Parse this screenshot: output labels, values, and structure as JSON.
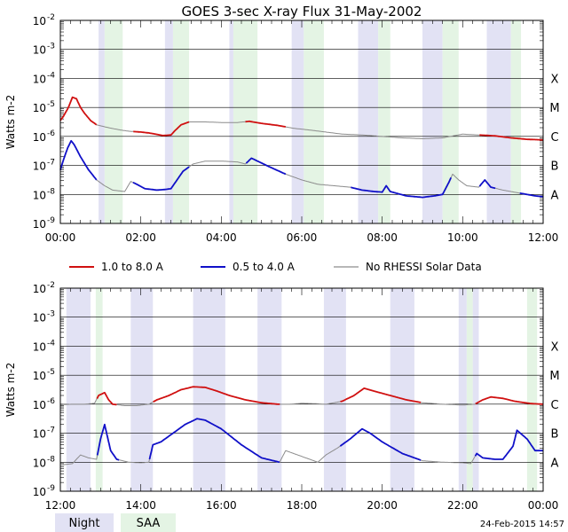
{
  "title": "GOES 3-sec X-ray Flux    31-May-2002",
  "colors": {
    "long": "#d01010",
    "short": "#1010c8",
    "gray": "#8c8c8c",
    "night": "#e2e2f4",
    "saa": "#e4f4e4",
    "grid": "#000000"
  },
  "legend": {
    "long_label": "1.0 to 8.0 A",
    "short_label": "0.5 to 4.0 A",
    "gray_label": "No RHESSI Solar Data"
  },
  "key": {
    "night_label": "Night",
    "saa_label": "SAA"
  },
  "timestamp": "24-Feb-2015 14:57",
  "chart_data": [
    {
      "type": "line",
      "panel": "top",
      "ylabel": "Watts m-2",
      "y_scale": "log",
      "ylim_exp": [
        -9,
        -2
      ],
      "y_ticks": [
        {
          "base": "10",
          "exp": "-9"
        },
        {
          "base": "10",
          "exp": "-8"
        },
        {
          "base": "10",
          "exp": "-7"
        },
        {
          "base": "10",
          "exp": "-6"
        },
        {
          "base": "10",
          "exp": "-5"
        },
        {
          "base": "10",
          "exp": "-4"
        },
        {
          "base": "10",
          "exp": "-3"
        },
        {
          "base": "10",
          "exp": "-2"
        }
      ],
      "class_labels": [
        {
          "label": "A",
          "exp": -8
        },
        {
          "label": "B",
          "exp": -7
        },
        {
          "label": "C",
          "exp": -6
        },
        {
          "label": "M",
          "exp": -5
        },
        {
          "label": "X",
          "exp": -4
        }
      ],
      "xlim_hours": [
        0,
        12
      ],
      "x_ticks": [
        {
          "label": "00:00",
          "h": 0
        },
        {
          "label": "02:00",
          "h": 2
        },
        {
          "label": "04:00",
          "h": 4
        },
        {
          "label": "06:00",
          "h": 6
        },
        {
          "label": "08:00",
          "h": 8
        },
        {
          "label": "10:00",
          "h": 10
        },
        {
          "label": "12:00",
          "h": 12
        }
      ],
      "night": [
        [
          0.95,
          1.1
        ],
        [
          2.6,
          2.8
        ],
        [
          4.2,
          4.3
        ],
        [
          5.75,
          6.05
        ],
        [
          7.4,
          7.9
        ],
        [
          9.0,
          9.5
        ],
        [
          10.6,
          11.2
        ]
      ],
      "saa": [
        [
          1.1,
          1.55
        ],
        [
          2.8,
          3.2
        ],
        [
          4.3,
          4.9
        ],
        [
          6.05,
          6.55
        ],
        [
          7.9,
          8.2
        ],
        [
          9.5,
          9.9
        ],
        [
          11.2,
          11.45
        ]
      ],
      "series": [
        {
          "name": "1.0 to 8.0 A",
          "color_key": "long",
          "gray_ranges": [
            [
              0.9,
              1.8
            ],
            [
              3.2,
              4.6
            ],
            [
              5.6,
              10.4
            ]
          ],
          "points": [
            [
              0.0,
              -5.45
            ],
            [
              0.08,
              -5.3
            ],
            [
              0.2,
              -5.0
            ],
            [
              0.3,
              -4.65
            ],
            [
              0.4,
              -4.7
            ],
            [
              0.5,
              -5.0
            ],
            [
              0.6,
              -5.2
            ],
            [
              0.75,
              -5.45
            ],
            [
              0.9,
              -5.6
            ],
            [
              1.2,
              -5.7
            ],
            [
              1.5,
              -5.78
            ],
            [
              1.7,
              -5.82
            ],
            [
              2.0,
              -5.85
            ],
            [
              2.2,
              -5.88
            ],
            [
              2.4,
              -5.93
            ],
            [
              2.55,
              -5.97
            ],
            [
              2.75,
              -5.95
            ],
            [
              2.85,
              -5.8
            ],
            [
              3.0,
              -5.6
            ],
            [
              3.2,
              -5.5
            ],
            [
              3.6,
              -5.5
            ],
            [
              4.0,
              -5.52
            ],
            [
              4.4,
              -5.52
            ],
            [
              4.7,
              -5.48
            ],
            [
              5.0,
              -5.55
            ],
            [
              5.4,
              -5.62
            ],
            [
              5.8,
              -5.72
            ],
            [
              6.2,
              -5.78
            ],
            [
              6.6,
              -5.85
            ],
            [
              7.0,
              -5.92
            ],
            [
              7.5,
              -5.95
            ],
            [
              8.0,
              -6.0
            ],
            [
              8.5,
              -6.05
            ],
            [
              9.0,
              -6.08
            ],
            [
              9.5,
              -6.05
            ],
            [
              10.0,
              -5.92
            ],
            [
              10.1,
              -5.93
            ],
            [
              10.4,
              -5.95
            ],
            [
              10.8,
              -5.98
            ],
            [
              11.2,
              -6.05
            ],
            [
              11.6,
              -6.1
            ],
            [
              12.0,
              -6.12
            ]
          ]
        },
        {
          "name": "0.5 to 4.0 A",
          "color_key": "short",
          "gray_ranges": [
            [
              0.9,
              1.8
            ],
            [
              3.2,
              4.6
            ],
            [
              5.6,
              7.2
            ],
            [
              9.7,
              10.4
            ],
            [
              10.8,
              11.4
            ]
          ],
          "points": [
            [
              0.0,
              -7.15
            ],
            [
              0.08,
              -6.8
            ],
            [
              0.18,
              -6.4
            ],
            [
              0.27,
              -6.15
            ],
            [
              0.35,
              -6.3
            ],
            [
              0.5,
              -6.7
            ],
            [
              0.7,
              -7.15
            ],
            [
              0.9,
              -7.5
            ],
            [
              1.1,
              -7.7
            ],
            [
              1.3,
              -7.85
            ],
            [
              1.6,
              -7.9
            ],
            [
              1.75,
              -7.55
            ],
            [
              1.9,
              -7.65
            ],
            [
              2.1,
              -7.8
            ],
            [
              2.4,
              -7.85
            ],
            [
              2.6,
              -7.83
            ],
            [
              2.75,
              -7.8
            ],
            [
              2.9,
              -7.5
            ],
            [
              3.05,
              -7.2
            ],
            [
              3.3,
              -6.95
            ],
            [
              3.6,
              -6.85
            ],
            [
              4.0,
              -6.85
            ],
            [
              4.4,
              -6.88
            ],
            [
              4.6,
              -6.95
            ],
            [
              4.75,
              -6.75
            ],
            [
              4.9,
              -6.85
            ],
            [
              5.2,
              -7.05
            ],
            [
              5.6,
              -7.3
            ],
            [
              6.0,
              -7.5
            ],
            [
              6.4,
              -7.65
            ],
            [
              6.8,
              -7.7
            ],
            [
              7.2,
              -7.75
            ],
            [
              7.5,
              -7.85
            ],
            [
              7.8,
              -7.9
            ],
            [
              8.0,
              -7.92
            ],
            [
              8.1,
              -7.7
            ],
            [
              8.2,
              -7.9
            ],
            [
              8.6,
              -8.05
            ],
            [
              9.0,
              -8.1
            ],
            [
              9.3,
              -8.05
            ],
            [
              9.5,
              -8.0
            ],
            [
              9.65,
              -7.6
            ],
            [
              9.75,
              -7.3
            ],
            [
              9.9,
              -7.5
            ],
            [
              10.1,
              -7.7
            ],
            [
              10.4,
              -7.75
            ],
            [
              10.55,
              -7.5
            ],
            [
              10.7,
              -7.75
            ],
            [
              11.0,
              -7.85
            ],
            [
              11.4,
              -7.95
            ],
            [
              11.8,
              -8.05
            ],
            [
              12.0,
              -8.08
            ]
          ]
        }
      ]
    },
    {
      "type": "line",
      "panel": "bottom",
      "ylabel": "Watts m-2",
      "y_scale": "log",
      "ylim_exp": [
        -9,
        -2
      ],
      "y_ticks": [
        {
          "base": "10",
          "exp": "-9"
        },
        {
          "base": "10",
          "exp": "-8"
        },
        {
          "base": "10",
          "exp": "-7"
        },
        {
          "base": "10",
          "exp": "-6"
        },
        {
          "base": "10",
          "exp": "-5"
        },
        {
          "base": "10",
          "exp": "-4"
        },
        {
          "base": "10",
          "exp": "-3"
        },
        {
          "base": "10",
          "exp": "-2"
        }
      ],
      "class_labels": [
        {
          "label": "A",
          "exp": -8
        },
        {
          "label": "B",
          "exp": -7
        },
        {
          "label": "C",
          "exp": -6
        },
        {
          "label": "M",
          "exp": -5
        },
        {
          "label": "X",
          "exp": -4
        }
      ],
      "xlim_hours": [
        12,
        24
      ],
      "x_ticks": [
        {
          "label": "12:00",
          "h": 12
        },
        {
          "label": "14:00",
          "h": 14
        },
        {
          "label": "16:00",
          "h": 16
        },
        {
          "label": "18:00",
          "h": 18
        },
        {
          "label": "20:00",
          "h": 20
        },
        {
          "label": "22:00",
          "h": 22
        },
        {
          "label": "00:00",
          "h": 24
        }
      ],
      "night": [
        [
          12.15,
          12.75
        ],
        [
          13.75,
          14.3
        ],
        [
          15.3,
          16.1
        ],
        [
          16.9,
          17.5
        ],
        [
          18.55,
          19.1
        ],
        [
          20.2,
          20.8
        ],
        [
          21.9,
          22.1
        ],
        [
          22.25,
          22.4
        ]
      ],
      "saa": [
        [
          12.88,
          13.05
        ],
        [
          22.1,
          22.25
        ],
        [
          23.6,
          23.85
        ]
      ],
      "series": [
        {
          "name": "1.0 to 8.0 A",
          "color_key": "long",
          "gray_ranges": [
            [
              12.0,
              12.9
            ],
            [
              13.4,
              14.3
            ],
            [
              17.45,
              18.95
            ],
            [
              20.95,
              22.3
            ]
          ],
          "points": [
            [
              12.0,
              -6.02
            ],
            [
              12.3,
              -6.0
            ],
            [
              12.6,
              -6.0
            ],
            [
              12.85,
              -5.97
            ],
            [
              12.95,
              -5.7
            ],
            [
              13.1,
              -5.6
            ],
            [
              13.2,
              -5.85
            ],
            [
              13.3,
              -6.0
            ],
            [
              13.6,
              -6.05
            ],
            [
              13.9,
              -6.05
            ],
            [
              14.2,
              -6.0
            ],
            [
              14.4,
              -5.85
            ],
            [
              14.7,
              -5.7
            ],
            [
              15.0,
              -5.5
            ],
            [
              15.3,
              -5.4
            ],
            [
              15.6,
              -5.42
            ],
            [
              15.9,
              -5.55
            ],
            [
              16.2,
              -5.7
            ],
            [
              16.6,
              -5.85
            ],
            [
              17.0,
              -5.95
            ],
            [
              17.4,
              -6.0
            ],
            [
              17.7,
              -6.0
            ],
            [
              18.0,
              -5.97
            ],
            [
              18.3,
              -5.98
            ],
            [
              18.6,
              -6.0
            ],
            [
              19.0,
              -5.9
            ],
            [
              19.3,
              -5.7
            ],
            [
              19.55,
              -5.45
            ],
            [
              19.8,
              -5.55
            ],
            [
              20.2,
              -5.7
            ],
            [
              20.6,
              -5.85
            ],
            [
              21.0,
              -5.95
            ],
            [
              21.5,
              -6.0
            ],
            [
              22.0,
              -6.03
            ],
            [
              22.3,
              -6.0
            ],
            [
              22.5,
              -5.85
            ],
            [
              22.7,
              -5.75
            ],
            [
              23.0,
              -5.8
            ],
            [
              23.3,
              -5.9
            ],
            [
              23.7,
              -5.98
            ],
            [
              24.0,
              -6.0
            ]
          ]
        },
        {
          "name": "0.5 to 4.0 A",
          "color_key": "short",
          "gray_ranges": [
            [
              12.0,
              12.9
            ],
            [
              13.45,
              14.2
            ],
            [
              17.45,
              18.95
            ],
            [
              20.95,
              22.3
            ]
          ],
          "points": [
            [
              12.0,
              -8.1
            ],
            [
              12.3,
              -8.05
            ],
            [
              12.5,
              -7.75
            ],
            [
              12.7,
              -7.85
            ],
            [
              12.9,
              -7.9
            ],
            [
              13.0,
              -7.2
            ],
            [
              13.1,
              -6.7
            ],
            [
              13.25,
              -7.6
            ],
            [
              13.4,
              -7.9
            ],
            [
              13.7,
              -8.0
            ],
            [
              14.0,
              -8.02
            ],
            [
              14.2,
              -8.0
            ],
            [
              14.3,
              -7.4
            ],
            [
              14.5,
              -7.3
            ],
            [
              14.8,
              -7.0
            ],
            [
              15.1,
              -6.7
            ],
            [
              15.4,
              -6.5
            ],
            [
              15.6,
              -6.55
            ],
            [
              16.0,
              -6.85
            ],
            [
              16.5,
              -7.4
            ],
            [
              17.0,
              -7.85
            ],
            [
              17.45,
              -8.0
            ],
            [
              17.6,
              -7.6
            ],
            [
              17.8,
              -7.7
            ],
            [
              18.1,
              -7.85
            ],
            [
              18.4,
              -8.0
            ],
            [
              18.6,
              -7.75
            ],
            [
              18.9,
              -7.5
            ],
            [
              19.2,
              -7.2
            ],
            [
              19.5,
              -6.85
            ],
            [
              19.7,
              -7.0
            ],
            [
              20.0,
              -7.3
            ],
            [
              20.5,
              -7.7
            ],
            [
              21.0,
              -7.95
            ],
            [
              21.5,
              -8.0
            ],
            [
              22.0,
              -8.02
            ],
            [
              22.2,
              -8.05
            ],
            [
              22.35,
              -7.7
            ],
            [
              22.5,
              -7.85
            ],
            [
              22.8,
              -7.9
            ],
            [
              23.0,
              -7.9
            ],
            [
              23.25,
              -7.45
            ],
            [
              23.35,
              -6.9
            ],
            [
              23.6,
              -7.2
            ],
            [
              23.8,
              -7.6
            ],
            [
              24.0,
              -7.6
            ]
          ]
        }
      ]
    }
  ]
}
